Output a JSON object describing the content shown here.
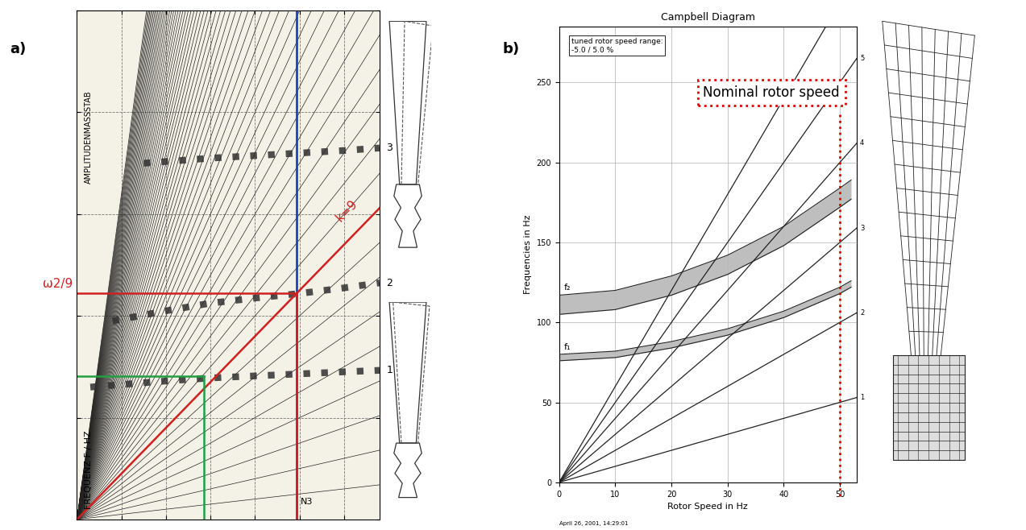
{
  "chart_data": [
    {
      "type": "campbell",
      "panel_label": "a)",
      "ylabel": "FREQUENZ F / HZ",
      "scale_label": "AMPLITUDENMASSSTAB",
      "xlim": [
        0,
        6.8
      ],
      "ylim": [
        0,
        100
      ],
      "xticks": [
        0,
        1,
        2,
        3,
        4,
        5,
        6
      ],
      "yticks": [
        0,
        20,
        40,
        60,
        80,
        100
      ],
      "tick_labels": false,
      "grid": true,
      "orders": [
        1,
        2,
        3,
        4,
        5,
        6,
        7,
        8,
        9,
        10,
        11,
        12,
        13,
        14,
        15,
        16,
        17,
        18,
        19,
        20,
        21,
        22,
        23,
        24,
        25,
        26,
        27,
        28,
        29,
        30,
        31,
        32,
        33,
        34,
        35,
        36,
        37,
        38,
        39,
        40,
        41,
        42,
        43,
        44,
        45,
        46,
        47,
        48,
        49,
        50,
        51,
        52,
        53,
        54,
        55,
        56,
        57,
        58,
        59,
        60,
        61,
        62,
        63,
        64
      ],
      "series": [
        {
          "name": "1",
          "color": "#303030",
          "x": [
            0.3,
            1,
            2,
            3,
            4,
            5,
            6,
            6.8
          ],
          "values": [
            26,
            26.5,
            27.2,
            27.8,
            28.2,
            28.6,
            29,
            29.3
          ]
        },
        {
          "name": "2",
          "color": "#303030",
          "x": [
            0.8,
            2,
            3,
            4,
            5,
            6,
            6.8
          ],
          "values": [
            39,
            41,
            42.5,
            43.5,
            44.4,
            45.5,
            46.5
          ]
        },
        {
          "name": "3",
          "color": "#303030",
          "x": [
            1.5,
            3,
            4,
            5,
            6,
            6.8
          ],
          "values": [
            70,
            71,
            71.5,
            72,
            72.5,
            73
          ]
        }
      ],
      "speed_line": {
        "x": 4.93,
        "label": "N3",
        "color": "#2040c0"
      },
      "resonance": {
        "order": 9,
        "order_label": "k=9",
        "frequency": 44.4,
        "frequency_label": "ω2/9",
        "color": "#d02020"
      },
      "marker_point": {
        "x": 2.86,
        "y": 28.2,
        "color": "#20a040"
      }
    },
    {
      "type": "campbell",
      "panel_label": "b)",
      "title": "Campbell Diagram",
      "xlabel": "Rotor Speed in Hz",
      "ylabel": "Frequencies in Hz",
      "xlim": [
        0,
        53
      ],
      "ylim": [
        0,
        285
      ],
      "xticks": [
        0,
        10,
        20,
        30,
        40,
        50
      ],
      "yticks": [
        0,
        50,
        100,
        150,
        200,
        250
      ],
      "grid": true,
      "orders": [
        1,
        2,
        3,
        4,
        5,
        6
      ],
      "bands": [
        {
          "name": "f₁",
          "color": "#a8a8a8",
          "x": [
            0,
            10,
            20,
            30,
            40,
            50,
            52
          ],
          "lower": [
            76,
            78,
            84,
            92,
            103,
            118,
            122
          ],
          "upper": [
            80,
            82,
            88,
            96,
            107,
            122,
            126
          ]
        },
        {
          "name": "f₂",
          "color": "#a8a8a8",
          "x": [
            0,
            10,
            20,
            30,
            40,
            50,
            52
          ],
          "lower": [
            105,
            108,
            117,
            130,
            148,
            172,
            177
          ],
          "upper": [
            117,
            120,
            129,
            142,
            160,
            184,
            189
          ]
        }
      ],
      "box_text": "tuned rotor speed range:\n-5.0 / 5.0 %",
      "nominal_speed": {
        "x": 50,
        "label": "Nominal rotor speed",
        "color": "#e00000"
      },
      "footer": "April 26, 2001, 14:29:01"
    }
  ]
}
